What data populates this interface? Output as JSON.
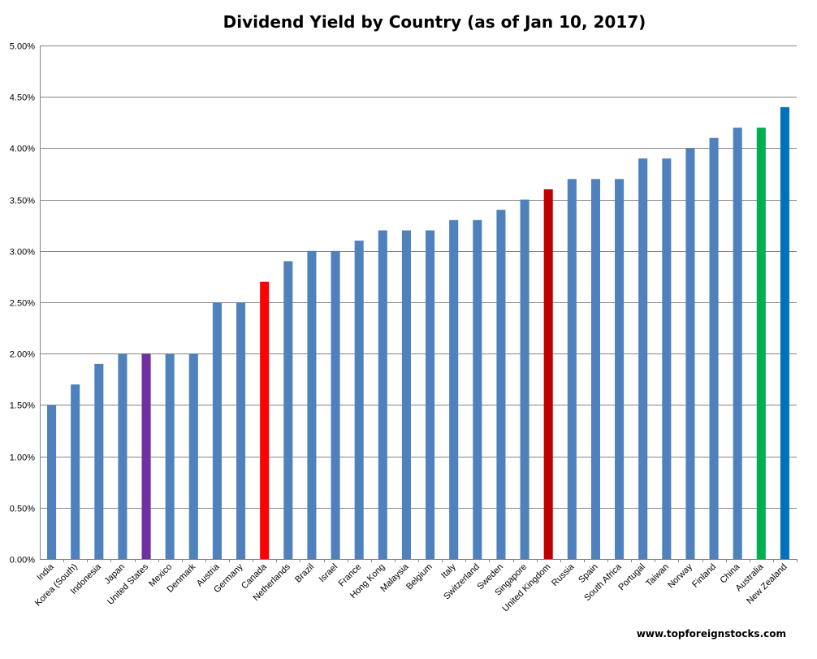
{
  "colors": {
    "default_bar": "#4F81BD",
    "gridline": "#868686",
    "background": "#ffffff"
  },
  "chart_data": {
    "type": "bar",
    "title": "Dividend Yield by Country (as of Jan 10, 2017)",
    "xlabel": "",
    "ylabel": "",
    "ylim": [
      0,
      0.05
    ],
    "y_ticks": [
      0,
      0.005,
      0.01,
      0.015,
      0.02,
      0.025,
      0.03,
      0.035,
      0.04,
      0.045,
      0.05
    ],
    "y_tick_labels": [
      "0.00%",
      "0.50%",
      "1.00%",
      "1.50%",
      "2.00%",
      "2.50%",
      "3.00%",
      "3.50%",
      "4.00%",
      "4.50%",
      "5.00%"
    ],
    "grid": true,
    "legend": "none",
    "categories": [
      "India",
      "Korea (South)",
      "Indonesia",
      "Japan",
      "United States",
      "Mexico",
      "Denmark",
      "Austria",
      "Germany",
      "Canada",
      "Netherlands",
      "Brazil",
      "Israel",
      "France",
      "Hong Kong",
      "Malaysia",
      "Belgium",
      "Italy",
      "Switzerland",
      "Sweden",
      "Singapore",
      "United Kingdom",
      "Russia",
      "Spain",
      "South Africa",
      "Portugal",
      "Taiwan",
      "Norway",
      "Finland",
      "China",
      "Australia",
      "New Zealand"
    ],
    "values": [
      0.015,
      0.017,
      0.019,
      0.02,
      0.02,
      0.02,
      0.02,
      0.025,
      0.025,
      0.027,
      0.029,
      0.03,
      0.03,
      0.031,
      0.032,
      0.032,
      0.032,
      0.033,
      0.033,
      0.034,
      0.035,
      0.036,
      0.037,
      0.037,
      0.037,
      0.039,
      0.039,
      0.04,
      0.041,
      0.042,
      0.042,
      0.044
    ],
    "bar_colors": [
      "#4F81BD",
      "#4F81BD",
      "#4F81BD",
      "#4F81BD",
      "#7030A0",
      "#4F81BD",
      "#4F81BD",
      "#4F81BD",
      "#4F81BD",
      "#FF0000",
      "#4F81BD",
      "#4F81BD",
      "#4F81BD",
      "#4F81BD",
      "#4F81BD",
      "#4F81BD",
      "#4F81BD",
      "#4F81BD",
      "#4F81BD",
      "#4F81BD",
      "#4F81BD",
      "#C00000",
      "#4F81BD",
      "#4F81BD",
      "#4F81BD",
      "#4F81BD",
      "#4F81BD",
      "#4F81BD",
      "#4F81BD",
      "#4F81BD",
      "#00B050",
      "#0070C0"
    ]
  },
  "watermark": "www.topforeignstocks.com"
}
